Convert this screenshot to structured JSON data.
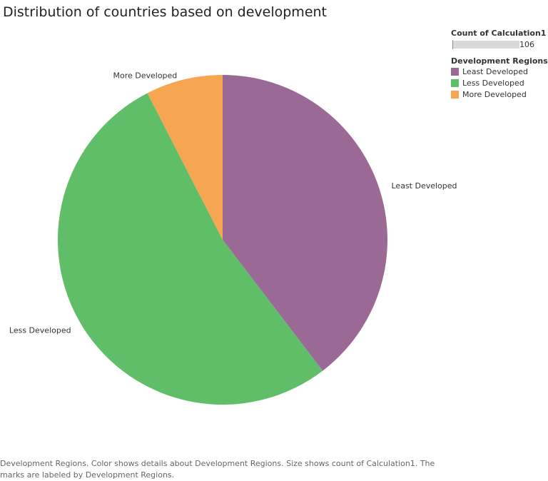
{
  "chart_data": {
    "type": "pie",
    "title": "Distribution of countries based on development",
    "categories": [
      "Least Developed",
      "Less Developed",
      "More Developed"
    ],
    "values": [
      42,
      56,
      8
    ],
    "colors": [
      "#9a6996",
      "#60be68",
      "#f6a551"
    ],
    "slice_labels": [
      "Least Developed",
      "Less Developed",
      "More Developed"
    ]
  },
  "legend": {
    "size_title": "Count of Calculation1",
    "size_max": "106",
    "color_title": "Development Regions",
    "items": [
      "Least Developed",
      "Less Developed",
      "More Developed"
    ]
  },
  "caption": "Development Regions.  Color shows details about Development Regions.  Size shows count of Calculation1.  The marks are labeled by Development Regions."
}
